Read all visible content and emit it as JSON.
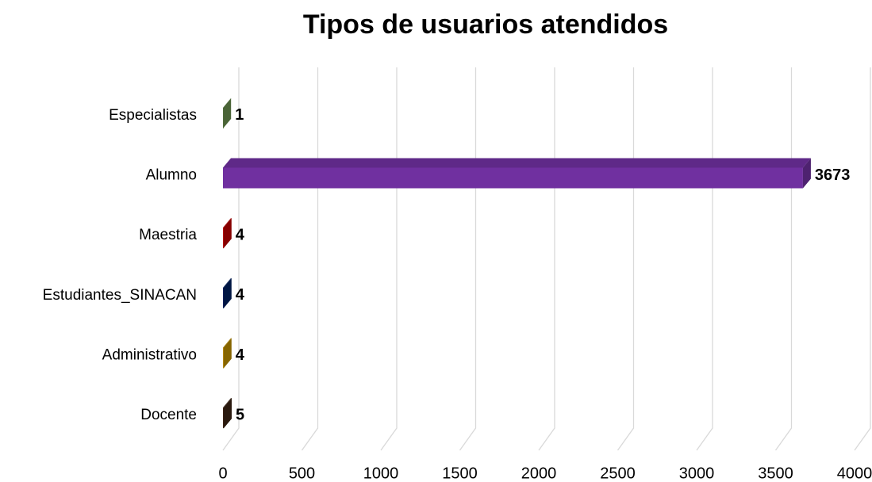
{
  "chart_data": {
    "type": "bar",
    "orientation": "horizontal",
    "title": "Tipos de usuarios atendidos",
    "categories": [
      "Docente",
      "Administrativo",
      "Estudiantes_SINACAN",
      "Maestria",
      "Alumno",
      "Especialistas"
    ],
    "values": [
      5,
      4,
      4,
      4,
      3673,
      1
    ],
    "colors": [
      "#3b2314",
      "#bf9000",
      "#002060",
      "#c00000",
      "#7030a0",
      "#6a8f4f"
    ],
    "xlim": [
      0,
      4000
    ],
    "xticks": [
      0,
      500,
      1000,
      1500,
      2000,
      2500,
      3000,
      3500,
      4000
    ],
    "grid": true
  }
}
